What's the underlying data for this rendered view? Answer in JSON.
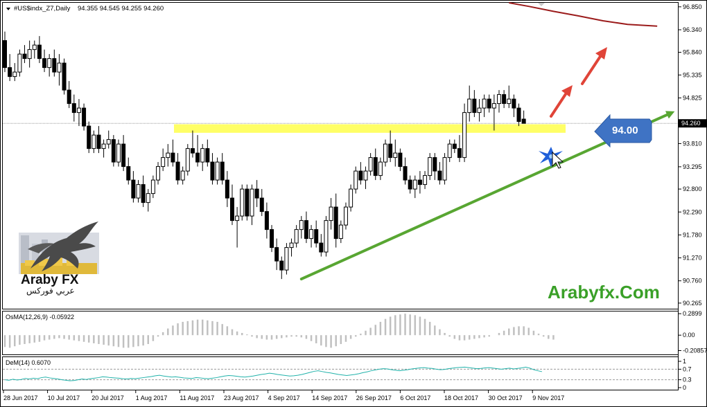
{
  "header": {
    "symbol": "#US$indx_Z7,Daily",
    "ohlc": "94.355 94.545 94.255 94.260"
  },
  "current_price_label": "94.260",
  "level_badge": "94.00",
  "watermark": "Arabyfx.Com",
  "logo": {
    "en": "Araby FX",
    "ar": "عربي فوركس"
  },
  "colors": {
    "bg": "#ffffff",
    "candle": "#000000",
    "zone": "#ffff66",
    "trendline": "#58a632",
    "ma": "#9b1b1b",
    "arrow_red": "#e04438",
    "badge": "#3f73c4",
    "osma": "#c0c0c0",
    "dem": "#20b2aa",
    "brand": "#3aa028"
  },
  "icons": [
    "eagle-logo-icon",
    "up-arrow-icon",
    "left-arrow-badge-icon",
    "cursor-icon",
    "star-burst-icon"
  ],
  "chart_data": [
    {
      "type": "candlestick",
      "title": "#US$indx_Z7,Daily",
      "ylim": [
        90.14,
        96.94
      ],
      "y_ticks": [
        "96.850",
        "96.340",
        "95.840",
        "95.335",
        "94.825",
        "94.260",
        "93.810",
        "93.295",
        "92.800",
        "92.290",
        "91.780",
        "91.270",
        "90.760",
        "90.265"
      ],
      "x_ticks": [
        "28 Jun 2017",
        "10 Jul 2017",
        "20 Jul 2017",
        "1 Aug 2017",
        "11 Aug 2017",
        "23 Aug 2017",
        "4 Sep 2017",
        "14 Sep 2017",
        "26 Sep 2017",
        "6 Oct 2017",
        "18 Oct 2017",
        "30 Oct 2017",
        "9 Nov 2017"
      ],
      "candles": [
        [
          96.1,
          96.3,
          95.4,
          95.5
        ],
        [
          95.5,
          95.8,
          95.2,
          95.3
        ],
        [
          95.3,
          95.6,
          95.2,
          95.4
        ],
        [
          95.4,
          95.9,
          95.3,
          95.8
        ],
        [
          95.8,
          96.0,
          95.6,
          95.7
        ],
        [
          95.7,
          96.1,
          95.5,
          95.9
        ],
        [
          95.9,
          96.1,
          95.7,
          96.0
        ],
        [
          96.0,
          96.2,
          95.6,
          95.7
        ],
        [
          95.7,
          95.9,
          95.4,
          95.5
        ],
        [
          95.5,
          95.8,
          95.3,
          95.7
        ],
        [
          95.7,
          95.9,
          95.3,
          95.4
        ],
        [
          95.4,
          95.8,
          95.1,
          95.6
        ],
        [
          95.6,
          95.7,
          94.9,
          95.0
        ],
        [
          95.0,
          95.2,
          94.6,
          94.7
        ],
        [
          94.7,
          94.9,
          94.3,
          94.5
        ],
        [
          94.5,
          94.8,
          94.2,
          94.6
        ],
        [
          94.6,
          94.7,
          94.1,
          94.2
        ],
        [
          94.2,
          94.3,
          93.6,
          93.7
        ],
        [
          93.7,
          94.1,
          93.6,
          94.0
        ],
        [
          94.0,
          94.2,
          93.6,
          93.7
        ],
        [
          93.7,
          93.9,
          93.5,
          93.8
        ],
        [
          93.8,
          94.1,
          93.7,
          93.9
        ],
        [
          93.9,
          94.0,
          93.3,
          93.4
        ],
        [
          93.4,
          93.9,
          93.3,
          93.8
        ],
        [
          93.8,
          94.0,
          93.2,
          93.3
        ],
        [
          93.3,
          93.5,
          92.9,
          93.0
        ],
        [
          93.0,
          93.2,
          92.5,
          92.6
        ],
        [
          92.6,
          93.0,
          92.5,
          92.9
        ],
        [
          92.9,
          93.1,
          92.4,
          92.5
        ],
        [
          92.5,
          92.8,
          92.3,
          92.7
        ],
        [
          92.7,
          93.1,
          92.6,
          93.0
        ],
        [
          93.0,
          93.4,
          92.9,
          93.3
        ],
        [
          93.3,
          93.7,
          93.2,
          93.5
        ],
        [
          93.5,
          93.8,
          93.3,
          93.6
        ],
        [
          93.6,
          93.9,
          93.3,
          93.4
        ],
        [
          93.4,
          93.6,
          92.9,
          93.0
        ],
        [
          93.0,
          93.3,
          92.9,
          93.2
        ],
        [
          93.2,
          93.8,
          93.1,
          93.7
        ],
        [
          93.7,
          94.1,
          93.5,
          93.6
        ],
        [
          93.6,
          94.0,
          93.3,
          93.4
        ],
        [
          93.4,
          93.8,
          93.2,
          93.7
        ],
        [
          93.7,
          93.9,
          93.3,
          93.4
        ],
        [
          93.4,
          93.6,
          92.9,
          93.0
        ],
        [
          93.0,
          93.5,
          92.9,
          93.4
        ],
        [
          93.4,
          93.6,
          92.9,
          93.0
        ],
        [
          93.0,
          93.2,
          92.4,
          92.6
        ],
        [
          92.6,
          92.9,
          92.0,
          92.1
        ],
        [
          92.1,
          92.4,
          91.5,
          92.2
        ],
        [
          92.2,
          92.9,
          92.1,
          92.8
        ],
        [
          92.8,
          92.9,
          92.1,
          92.2
        ],
        [
          92.2,
          92.9,
          92.0,
          92.8
        ],
        [
          92.8,
          93.0,
          92.4,
          92.6
        ],
        [
          92.6,
          92.8,
          92.2,
          92.3
        ],
        [
          92.3,
          92.5,
          91.7,
          91.9
        ],
        [
          91.9,
          92.0,
          91.4,
          91.5
        ],
        [
          91.5,
          91.7,
          91.0,
          91.2
        ],
        [
          91.2,
          91.3,
          90.8,
          91.0
        ],
        [
          91.0,
          91.6,
          90.9,
          91.5
        ],
        [
          91.5,
          91.7,
          91.3,
          91.6
        ],
        [
          91.6,
          92.0,
          91.5,
          91.9
        ],
        [
          91.9,
          92.2,
          91.7,
          92.1
        ],
        [
          92.1,
          92.3,
          91.6,
          91.7
        ],
        [
          91.7,
          92.0,
          91.5,
          91.9
        ],
        [
          91.9,
          92.1,
          91.5,
          91.6
        ],
        [
          91.6,
          91.8,
          91.3,
          91.4
        ],
        [
          91.4,
          92.2,
          91.3,
          92.1
        ],
        [
          92.1,
          92.6,
          91.9,
          92.4
        ],
        [
          92.4,
          92.7,
          91.5,
          91.7
        ],
        [
          91.7,
          92.1,
          91.6,
          92.0
        ],
        [
          92.0,
          92.5,
          91.9,
          92.4
        ],
        [
          92.4,
          92.9,
          92.3,
          92.8
        ],
        [
          92.8,
          93.3,
          92.7,
          93.2
        ],
        [
          93.2,
          93.4,
          92.9,
          93.0
        ],
        [
          93.0,
          93.3,
          92.8,
          93.2
        ],
        [
          93.2,
          93.6,
          93.1,
          93.5
        ],
        [
          93.5,
          93.7,
          93.0,
          93.1
        ],
        [
          93.1,
          93.5,
          93.0,
          93.4
        ],
        [
          93.4,
          93.9,
          93.3,
          93.8
        ],
        [
          93.8,
          94.1,
          93.4,
          93.5
        ],
        [
          93.5,
          93.9,
          93.3,
          93.6
        ],
        [
          93.6,
          93.7,
          93.2,
          93.3
        ],
        [
          93.3,
          93.5,
          92.9,
          93.0
        ],
        [
          93.0,
          93.1,
          92.7,
          92.8
        ],
        [
          92.8,
          93.1,
          92.6,
          93.0
        ],
        [
          93.0,
          93.2,
          92.7,
          92.9
        ],
        [
          92.9,
          93.2,
          92.8,
          93.1
        ],
        [
          93.1,
          93.6,
          93.0,
          93.5
        ],
        [
          93.5,
          93.6,
          93.0,
          93.2
        ],
        [
          93.2,
          93.4,
          92.9,
          93.0
        ],
        [
          93.0,
          93.6,
          92.9,
          93.5
        ],
        [
          93.5,
          93.9,
          93.4,
          93.8
        ],
        [
          93.8,
          93.9,
          93.6,
          93.7
        ],
        [
          93.7,
          94.0,
          93.4,
          93.5
        ],
        [
          93.5,
          94.7,
          93.4,
          94.5
        ],
        [
          94.5,
          95.1,
          94.3,
          94.8
        ],
        [
          94.8,
          95.0,
          94.4,
          94.5
        ],
        [
          94.5,
          94.8,
          94.3,
          94.6
        ],
        [
          94.6,
          94.9,
          94.4,
          94.8
        ],
        [
          94.8,
          94.9,
          94.5,
          94.6
        ],
        [
          94.6,
          94.9,
          94.1,
          94.7
        ],
        [
          94.7,
          95.0,
          94.5,
          94.9
        ],
        [
          94.9,
          95.0,
          94.6,
          94.7
        ],
        [
          94.7,
          95.1,
          94.6,
          94.8
        ],
        [
          94.8,
          94.9,
          94.4,
          94.6
        ],
        [
          94.6,
          94.7,
          94.2,
          94.3
        ],
        [
          94.355,
          94.545,
          94.255,
          94.26
        ]
      ],
      "ma_line": [
        [
          102,
          96.94
        ],
        [
          106,
          96.86
        ],
        [
          111,
          96.75
        ],
        [
          116,
          96.65
        ],
        [
          121,
          96.54
        ],
        [
          126,
          96.46
        ],
        [
          132,
          96.42
        ]
      ],
      "support_zone": [
        94.05,
        94.24
      ],
      "trendline": [
        [
          60,
          90.8
        ],
        [
          134,
          94.45
        ]
      ],
      "current_price": 94.26
    },
    {
      "type": "bar",
      "title": "OsMA(12,26,9) -0.05922",
      "ylim": [
        -0.26,
        0.32
      ],
      "y_ticks": [
        "0.2899",
        "0.00",
        "-0.20857"
      ],
      "values": [
        -0.16,
        -0.17,
        -0.15,
        -0.13,
        -0.12,
        -0.11,
        -0.1,
        -0.09,
        -0.07,
        -0.06,
        -0.05,
        -0.04,
        -0.05,
        -0.06,
        -0.07,
        -0.08,
        -0.09,
        -0.1,
        -0.11,
        -0.12,
        -0.13,
        -0.14,
        -0.15,
        -0.16,
        -0.17,
        -0.17,
        -0.16,
        -0.15,
        -0.14,
        -0.12,
        -0.08,
        -0.02,
        0.04,
        0.09,
        0.13,
        0.16,
        0.18,
        0.19,
        0.2,
        0.21,
        0.21,
        0.2,
        0.19,
        0.18,
        0.15,
        0.12,
        0.08,
        0.05,
        0.03,
        0.01,
        -0.02,
        -0.04,
        -0.05,
        -0.06,
        -0.06,
        -0.05,
        -0.04,
        -0.03,
        -0.02,
        -0.02,
        -0.03,
        -0.05,
        -0.08,
        -0.11,
        -0.14,
        -0.16,
        -0.17,
        -0.15,
        -0.12,
        -0.09,
        -0.05,
        -0.02,
        0.02,
        0.06,
        0.1,
        0.14,
        0.18,
        0.22,
        0.25,
        0.27,
        0.28,
        0.29,
        0.28,
        0.27,
        0.25,
        0.22,
        0.18,
        0.13,
        0.08,
        0.03,
        -0.02,
        -0.05,
        -0.07,
        -0.07,
        -0.06,
        -0.05,
        -0.04,
        -0.03,
        -0.02,
        0.0,
        0.03,
        0.06,
        0.09,
        0.11,
        0.12,
        0.12,
        0.1,
        0.06,
        0.02,
        -0.02,
        -0.05,
        -0.06
      ]
    },
    {
      "type": "line",
      "title": "DeM(14) 0.6070",
      "ylim": [
        0,
        1
      ],
      "y_ticks": [
        "1",
        "0.7",
        "0.3",
        "0"
      ],
      "levels": [
        0.7,
        0.3
      ],
      "values": [
        0.3,
        0.28,
        0.32,
        0.29,
        0.31,
        0.35,
        0.33,
        0.36,
        0.34,
        0.38,
        0.4,
        0.37,
        0.35,
        0.33,
        0.3,
        0.28,
        0.26,
        0.27,
        0.3,
        0.33,
        0.31,
        0.34,
        0.36,
        0.38,
        0.41,
        0.4,
        0.38,
        0.37,
        0.36,
        0.34,
        0.33,
        0.35,
        0.34,
        0.36,
        0.38,
        0.4,
        0.42,
        0.45,
        0.47,
        0.44,
        0.42,
        0.4,
        0.41,
        0.39,
        0.37,
        0.36,
        0.35,
        0.38,
        0.37,
        0.35,
        0.34,
        0.36,
        0.38,
        0.41,
        0.44,
        0.46,
        0.45,
        0.43,
        0.41,
        0.4,
        0.42,
        0.44,
        0.47,
        0.5,
        0.52,
        0.55,
        0.53,
        0.5,
        0.48,
        0.46,
        0.44,
        0.45,
        0.47,
        0.5,
        0.54,
        0.58,
        0.62,
        0.64,
        0.61,
        0.58,
        0.56,
        0.53,
        0.5,
        0.48,
        0.46,
        0.48,
        0.5,
        0.53,
        0.57,
        0.6,
        0.64,
        0.67,
        0.7,
        0.72,
        0.71,
        0.68,
        0.66,
        0.64,
        0.66,
        0.68,
        0.71,
        0.73,
        0.75,
        0.76,
        0.74,
        0.73,
        0.7,
        0.68,
        0.69,
        0.72,
        0.74,
        0.76,
        0.77,
        0.78,
        0.76,
        0.74,
        0.72,
        0.73,
        0.75,
        0.76,
        0.74,
        0.72,
        0.7,
        0.72,
        0.74,
        0.71,
        0.73,
        0.75,
        0.78,
        0.74,
        0.68,
        0.64,
        0.607
      ]
    }
  ]
}
